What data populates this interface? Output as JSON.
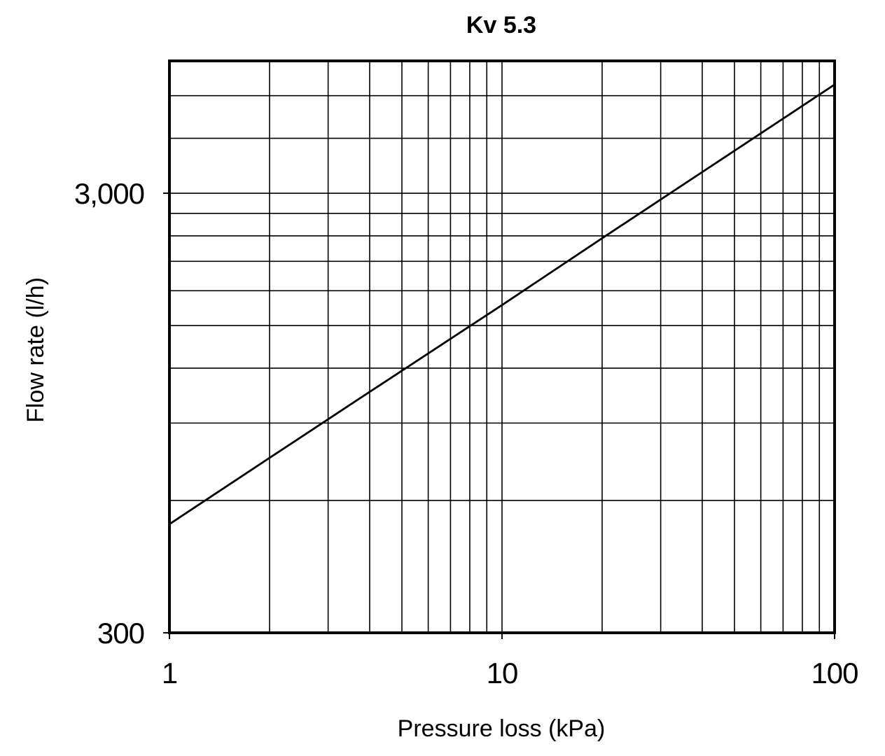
{
  "chart_data": {
    "type": "line",
    "title": "Kv 5.3",
    "xlabel": "Pressure loss (kPa)",
    "ylabel": "Flow rate (l/h)",
    "x_scale": "log",
    "y_scale": "log",
    "xlim": [
      1,
      100
    ],
    "ylim": [
      300,
      6000
    ],
    "x_ticks": [
      {
        "value": 1,
        "label": "1"
      },
      {
        "value": 10,
        "label": "10"
      },
      {
        "value": 100,
        "label": "100"
      }
    ],
    "y_ticks": [
      {
        "value": 300,
        "label": "300"
      },
      {
        "value": 3000,
        "label": "3,000"
      }
    ],
    "x_grid": [
      1,
      2,
      3,
      4,
      5,
      6,
      7,
      8,
      9,
      10,
      20,
      30,
      40,
      50,
      60,
      70,
      80,
      90,
      100
    ],
    "y_grid": [
      300,
      600,
      900,
      1200,
      1500,
      1800,
      2100,
      2400,
      2700,
      3000,
      4000,
      5000,
      6000
    ],
    "grid": true,
    "series": [
      {
        "x": [
          1,
          2,
          4,
          10,
          20,
          25,
          100
        ],
        "y": [
          530,
          750,
          1060,
          1670,
          2370,
          2650,
          5300
        ],
        "color": "#000000"
      }
    ]
  }
}
